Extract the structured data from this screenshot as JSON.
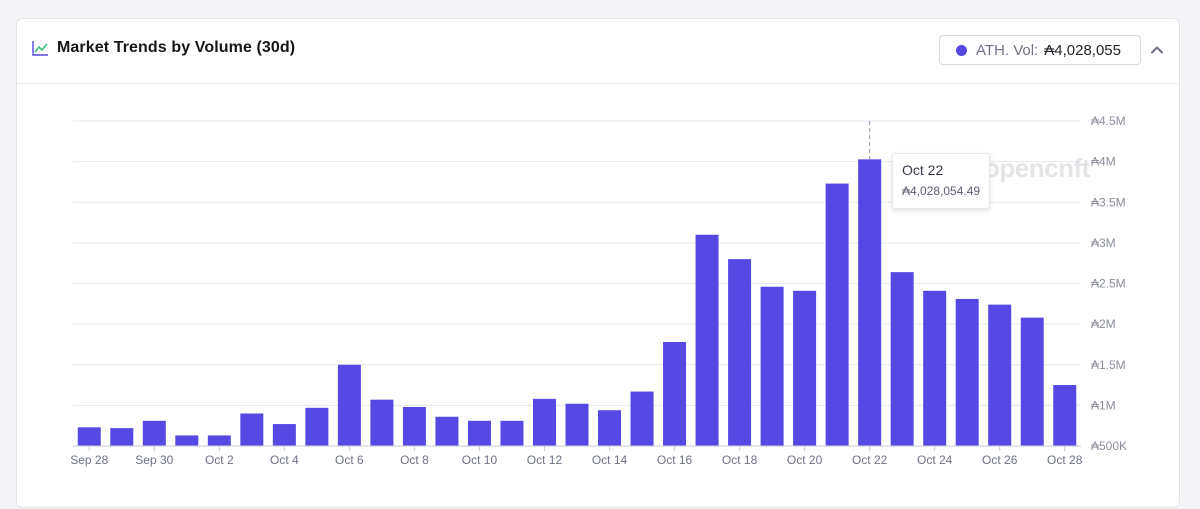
{
  "header": {
    "title": "Market Trends by Volume (30d)",
    "icon": "line-chart-icon",
    "ath_label": "ATH. Vol:",
    "ath_value": "₳4,028,055",
    "ath_color": "#5649e3",
    "collapse_icon": "chevron-up-icon"
  },
  "watermark": "opencnft",
  "tooltip": {
    "date": "Oct 22",
    "value": "₳4,028,054.49"
  },
  "colors": {
    "bar": "#5649e3",
    "grid": "#e5e7f0"
  },
  "chart_data": {
    "type": "bar",
    "title": "Market Trends by Volume (30d)",
    "xlabel": "",
    "ylabel": "",
    "ylim": [
      500000,
      4500000
    ],
    "y_ticks": [
      500000,
      1000000,
      1500000,
      2000000,
      2500000,
      3000000,
      3500000,
      4000000,
      4500000
    ],
    "y_tick_labels": [
      "₳500K",
      "₳1M",
      "₳1.5M",
      "₳2M",
      "₳2.5M",
      "₳3M",
      "₳3.5M",
      "₳4M",
      "₳4.5M"
    ],
    "categories": [
      "Sep 28",
      "Sep 29",
      "Sep 30",
      "Oct 1",
      "Oct 2",
      "Oct 3",
      "Oct 4",
      "Oct 5",
      "Oct 6",
      "Oct 7",
      "Oct 8",
      "Oct 9",
      "Oct 10",
      "Oct 11",
      "Oct 12",
      "Oct 13",
      "Oct 14",
      "Oct 15",
      "Oct 16",
      "Oct 17",
      "Oct 18",
      "Oct 19",
      "Oct 20",
      "Oct 21",
      "Oct 22",
      "Oct 23",
      "Oct 24",
      "Oct 25",
      "Oct 26",
      "Oct 27",
      "Oct 28"
    ],
    "x_tick_labels": [
      "Sep 28",
      "Sep 30",
      "Oct 2",
      "Oct 4",
      "Oct 6",
      "Oct 8",
      "Oct 10",
      "Oct 12",
      "Oct 14",
      "Oct 16",
      "Oct 18",
      "Oct 20",
      "Oct 22",
      "Oct 24",
      "Oct 26",
      "Oct 28"
    ],
    "values": [
      730000,
      720000,
      810000,
      630000,
      630000,
      900000,
      770000,
      970000,
      1500000,
      1070000,
      980000,
      860000,
      810000,
      810000,
      1080000,
      1020000,
      940000,
      1170000,
      1780000,
      3100000,
      2800000,
      2460000,
      2410000,
      3730000,
      4028054.49,
      2640000,
      2410000,
      2310000,
      2240000,
      2080000,
      1250000
    ],
    "highlight_index": 24,
    "grid": true,
    "legend": "none"
  }
}
